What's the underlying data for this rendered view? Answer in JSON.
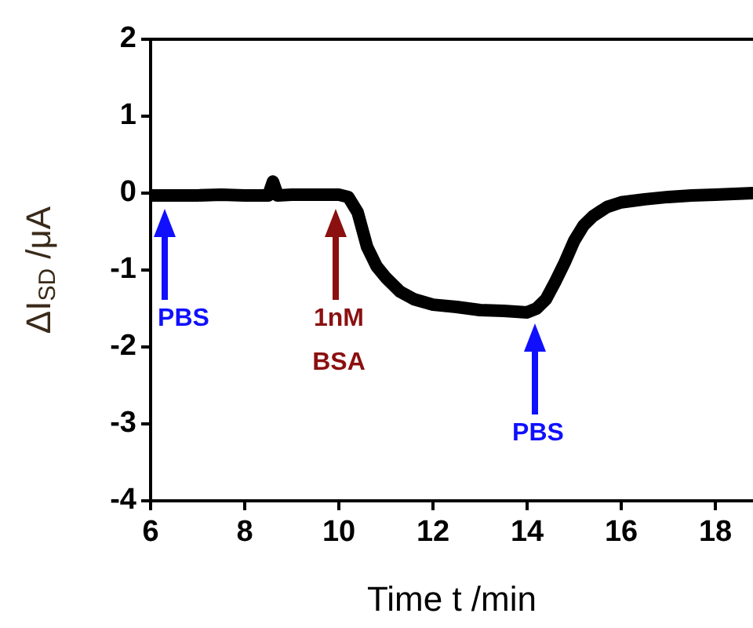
{
  "chart_data": {
    "type": "line",
    "xlabel": "Time t /min",
    "ylabel": "ΔI$_{SD}$ /μA",
    "xlim": [
      6,
      18.8
    ],
    "xticks": [
      6,
      8,
      10,
      12,
      14,
      16,
      18
    ],
    "ylim": [
      -4,
      2
    ],
    "yticks": [
      -4,
      -3,
      -2,
      -1,
      0,
      1,
      2
    ],
    "grid": false,
    "legend": false,
    "marker": "none",
    "line_style": "solid",
    "series": [
      {
        "color": "#000000",
        "x": [
          6,
          6.5,
          7,
          7.5,
          8,
          8.5,
          8.6,
          8.7,
          9,
          9.5,
          10,
          10.2,
          10.4,
          10.6,
          10.8,
          11,
          11.3,
          11.6,
          12,
          12.5,
          13,
          13.5,
          14,
          14.2,
          14.4,
          14.6,
          14.8,
          15,
          15.2,
          15.4,
          15.7,
          16,
          16.5,
          17,
          17.5,
          18,
          18.8
        ],
        "values": [
          -0.03,
          -0.03,
          -0.03,
          -0.02,
          -0.03,
          -0.03,
          0.15,
          -0.03,
          -0.02,
          -0.02,
          -0.02,
          -0.05,
          -0.25,
          -0.7,
          -0.95,
          -1.1,
          -1.28,
          -1.38,
          -1.45,
          -1.48,
          -1.52,
          -1.53,
          -1.55,
          -1.5,
          -1.38,
          -1.15,
          -0.9,
          -0.62,
          -0.42,
          -0.3,
          -0.18,
          -0.12,
          -0.08,
          -0.05,
          -0.03,
          -0.02,
          0
        ]
      }
    ],
    "annotations": [
      "PBS",
      "1nM\nBSA",
      "PBS"
    ]
  }
}
